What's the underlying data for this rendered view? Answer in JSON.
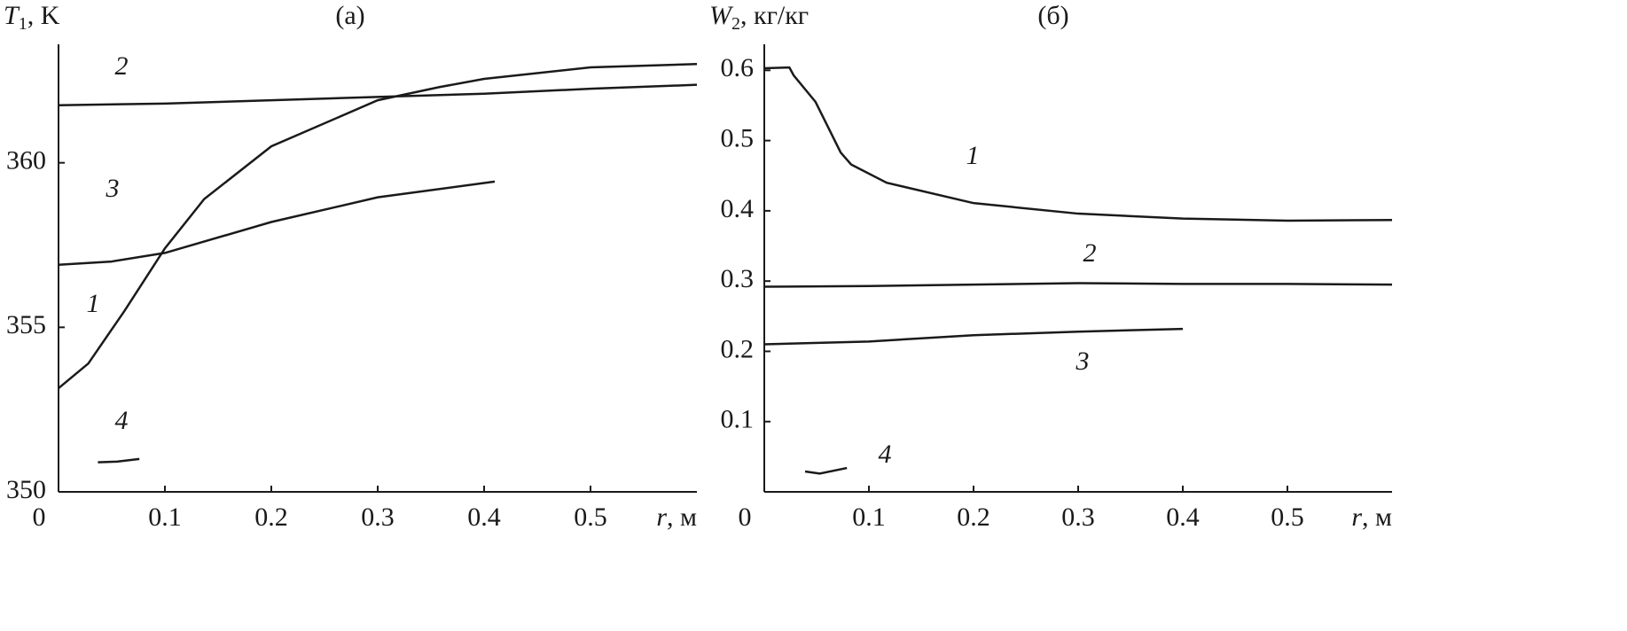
{
  "chart_data": [
    {
      "type": "line",
      "title": "(а)",
      "ylabel": {
        "symbol": "T",
        "subscript": "1",
        "unit": ", K"
      },
      "xlabel": {
        "symbol": "r",
        "unit": ", м"
      },
      "xlim": [
        0,
        0.6
      ],
      "xticks": [
        0,
        0.1,
        0.2,
        0.3,
        0.4,
        0.5
      ],
      "ylim": [
        350,
        363.6
      ],
      "yticks": [
        350,
        355,
        360
      ],
      "grid": false,
      "series": [
        {
          "name": "1",
          "color": "#1a1a1a",
          "x": [
            0,
            0.028,
            0.062,
            0.1,
            0.137,
            0.2,
            0.3,
            0.358,
            0.4,
            0.5,
            0.6
          ],
          "values": [
            353.15,
            353.9,
            355.5,
            357.4,
            358.9,
            360.5,
            361.9,
            362.3,
            362.55,
            362.9,
            363.0
          ]
        },
        {
          "name": "2",
          "color": "#1a1a1a",
          "x": [
            0,
            0.1,
            0.2,
            0.3,
            0.4,
            0.5,
            0.6
          ],
          "values": [
            361.75,
            361.8,
            361.9,
            362.0,
            362.1,
            362.25,
            362.37
          ]
        },
        {
          "name": "3",
          "color": "#1a1a1a",
          "x": [
            0,
            0.05,
            0.1,
            0.2,
            0.3,
            0.41
          ],
          "values": [
            356.9,
            357.0,
            357.26,
            358.2,
            358.95,
            359.43
          ]
        },
        {
          "name": "4",
          "color": "#1a1a1a",
          "x": [
            0.037,
            0.055,
            0.076
          ],
          "values": [
            350.9,
            350.92,
            351.0
          ]
        }
      ]
    },
    {
      "type": "line",
      "title": "(б)",
      "ylabel": {
        "symbol": "W",
        "subscript": "2",
        "unit": ", кг/кг"
      },
      "xlabel": {
        "symbol": "r",
        "unit": ", м"
      },
      "xlim": [
        0,
        0.6
      ],
      "xticks": [
        0,
        0.1,
        0.2,
        0.3,
        0.4,
        0.5
      ],
      "ylim": [
        0,
        0.637
      ],
      "yticks": [
        0.1,
        0.2,
        0.3,
        0.4,
        0.5,
        0.6
      ],
      "grid": false,
      "series": [
        {
          "name": "1",
          "color": "#1a1a1a",
          "x": [
            0,
            0.024,
            0.028,
            0.049,
            0.073,
            0.083,
            0.117,
            0.2,
            0.3,
            0.4,
            0.5,
            0.6
          ],
          "values": [
            0.603,
            0.604,
            0.593,
            0.555,
            0.483,
            0.466,
            0.44,
            0.411,
            0.396,
            0.389,
            0.386,
            0.387
          ]
        },
        {
          "name": "2",
          "color": "#1a1a1a",
          "x": [
            0,
            0.1,
            0.2,
            0.3,
            0.4,
            0.5,
            0.6
          ],
          "values": [
            0.292,
            0.293,
            0.295,
            0.297,
            0.296,
            0.296,
            0.295
          ]
        },
        {
          "name": "3",
          "color": "#1a1a1a",
          "x": [
            0,
            0.1,
            0.2,
            0.3,
            0.4
          ],
          "values": [
            0.21,
            0.214,
            0.223,
            0.228,
            0.232
          ]
        },
        {
          "name": "4",
          "color": "#1a1a1a",
          "x": [
            0.039,
            0.053,
            0.079
          ],
          "values": [
            0.029,
            0.026,
            0.034
          ]
        }
      ]
    }
  ]
}
